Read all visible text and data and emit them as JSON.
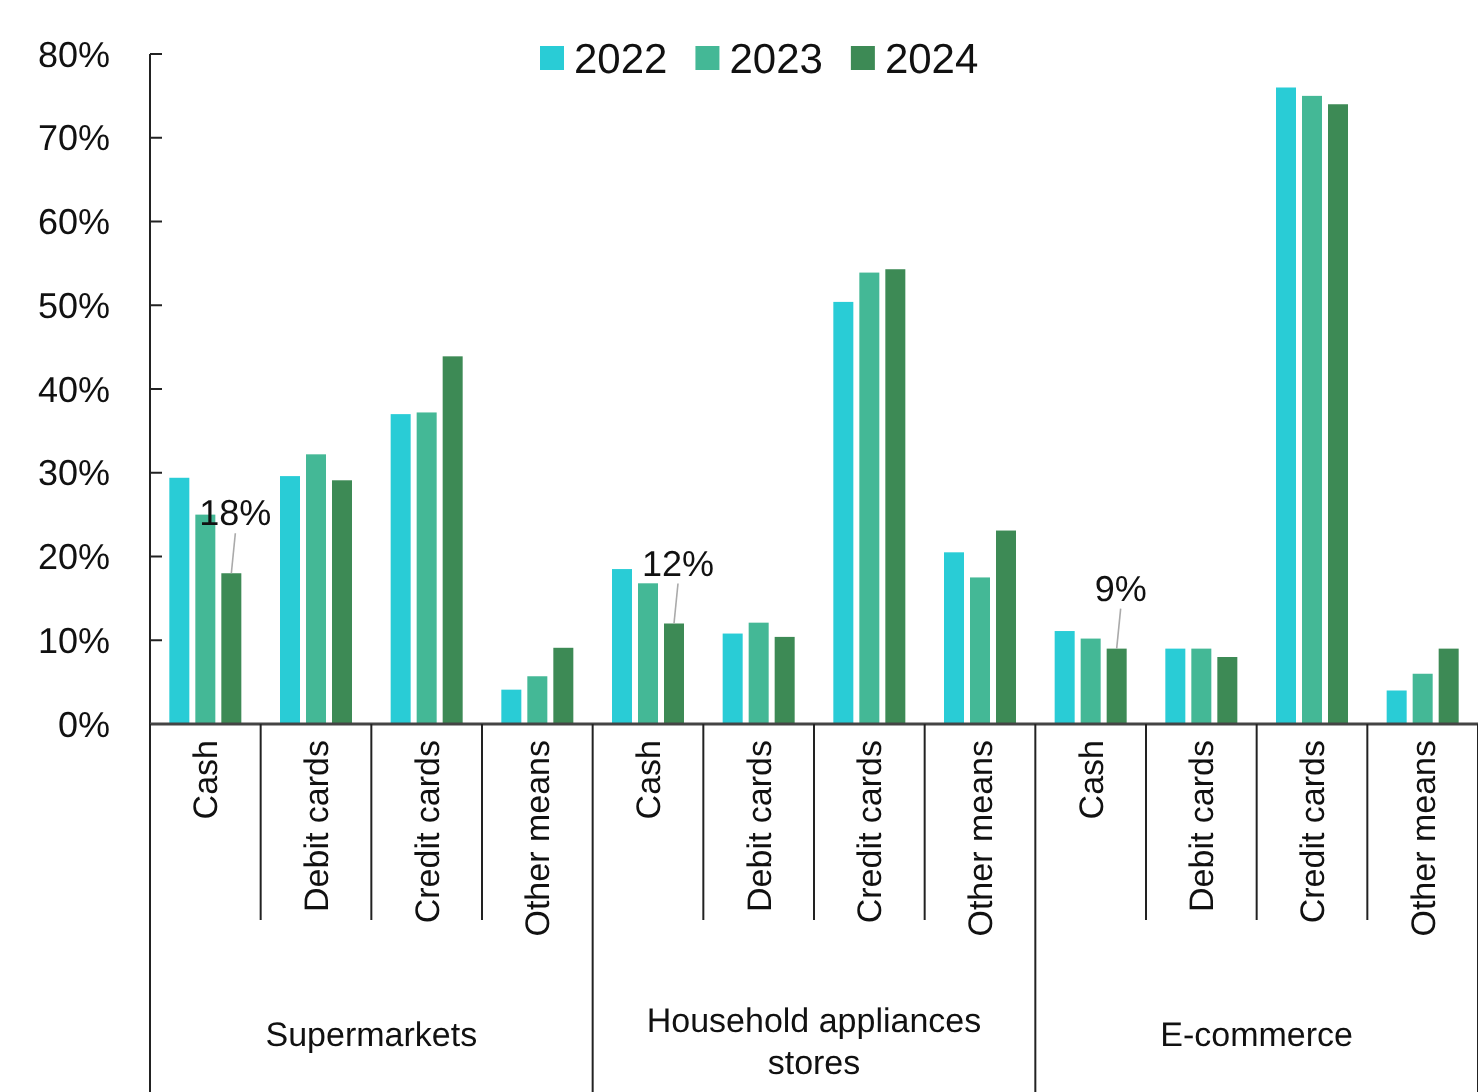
{
  "chart_data": {
    "type": "bar",
    "categories": [
      "Cash",
      "Debit cards",
      "Credit cards",
      "Other means",
      "Cash",
      "Debit cards",
      "Credit cards",
      "Other means",
      "Cash",
      "Debit cards",
      "Credit cards",
      "Other means"
    ],
    "series": [
      {
        "name": "2022",
        "color": "#29ccd6",
        "values": [
          29.4,
          29.6,
          37,
          4.1,
          18.5,
          10.8,
          50.4,
          20.5,
          11.1,
          9,
          76,
          4
        ]
      },
      {
        "name": "2023",
        "color": "#44b896",
        "values": [
          25,
          32.2,
          37.2,
          5.7,
          16.8,
          12.1,
          53.9,
          17.5,
          10.2,
          9,
          75,
          6
        ]
      },
      {
        "name": "2024",
        "color": "#3d8a55",
        "values": [
          18,
          29.1,
          43.9,
          9.1,
          12,
          10.4,
          54.3,
          23.1,
          9,
          8,
          74,
          9
        ],
        "value_labels": [
          "18%",
          null,
          null,
          null,
          "12%",
          null,
          null,
          null,
          "9%",
          null,
          null,
          null
        ]
      }
    ],
    "ylim": [
      0,
      80
    ],
    "yticks": [
      {
        "value": 0,
        "label": "0%"
      },
      {
        "value": 10,
        "label": "10%"
      },
      {
        "value": 20,
        "label": "20%"
      },
      {
        "value": 30,
        "label": "30%"
      },
      {
        "value": 40,
        "label": "40%"
      },
      {
        "value": 50,
        "label": "50%"
      },
      {
        "value": 60,
        "label": "60%"
      },
      {
        "value": 70,
        "label": "70%"
      },
      {
        "value": 80,
        "label": "80%"
      }
    ],
    "annotations": [
      "Supermarkets",
      "Household appliances stores",
      "E-commerce"
    ],
    "legend": "top",
    "grid": false
  }
}
